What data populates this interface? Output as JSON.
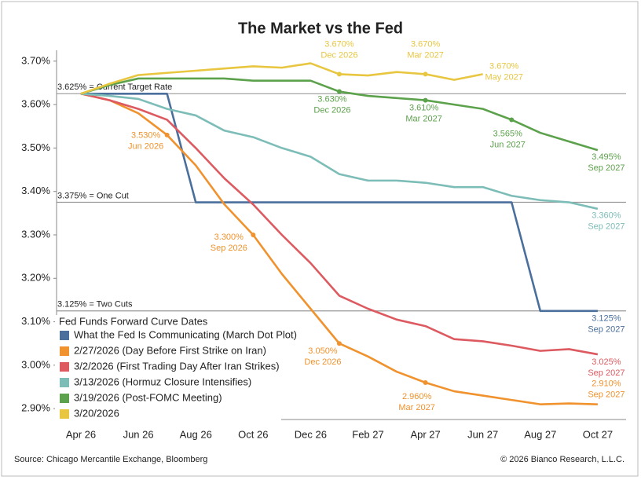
{
  "chart_data": {
    "type": "line",
    "title": "The Market vs the Fed",
    "categories": [
      "Apr 26",
      null,
      "Jun 26",
      null,
      "Aug 26",
      null,
      "Oct 26",
      null,
      "Dec 26",
      null,
      "Feb 27",
      null,
      "Apr 27",
      null,
      "Jun 27",
      null,
      "Aug 27",
      null,
      "Oct 27"
    ],
    "ylim": [
      2.875,
      3.725
    ],
    "yticks": [
      {
        "value": 2.9,
        "label": "2.90%"
      },
      {
        "value": 3.0,
        "label": "3.00%"
      },
      {
        "value": 3.1,
        "label": "3.10%"
      },
      {
        "value": 3.2,
        "label": "3.20%"
      },
      {
        "value": 3.3,
        "label": "3.30%"
      },
      {
        "value": 3.4,
        "label": "3.40%"
      },
      {
        "value": 3.5,
        "label": "3.50%"
      },
      {
        "value": 3.6,
        "label": "3.60%"
      },
      {
        "value": 3.7,
        "label": "3.70%"
      }
    ],
    "grid": false,
    "legend_title": "Fed Funds Forward Curve Dates",
    "legend_position": "lower left",
    "series": [
      {
        "name": "What the Fed Is Communicating (March Dot Plot)",
        "color": "#4a6f9c",
        "values": [
          3.625,
          3.625,
          3.625,
          3.625,
          3.375,
          3.375,
          3.375,
          3.375,
          3.375,
          3.375,
          3.375,
          3.375,
          3.375,
          3.375,
          3.375,
          3.375,
          3.125,
          3.125,
          3.125
        ]
      },
      {
        "name": "2/27/2026 (Day Before First Strike on Iran)",
        "color": "#f0922d",
        "values": [
          3.625,
          3.61,
          3.58,
          3.53,
          3.46,
          3.37,
          3.3,
          3.21,
          3.13,
          3.05,
          3.02,
          2.985,
          2.96,
          2.94,
          2.93,
          2.92,
          2.91,
          2.912,
          2.91
        ]
      },
      {
        "name": "3/2/2026 (First Trading Day After Iran Strikes)",
        "color": "#dc5a60",
        "values": [
          3.625,
          3.61,
          3.59,
          3.565,
          3.5,
          3.43,
          3.37,
          3.3,
          3.235,
          3.16,
          3.13,
          3.105,
          3.09,
          3.06,
          3.055,
          3.045,
          3.033,
          3.037,
          3.025
        ]
      },
      {
        "name": "3/13/2026 (Hormuz Closure Intensifies)",
        "color": "#7dbdb8",
        "values": [
          3.625,
          3.62,
          3.613,
          3.59,
          3.575,
          3.54,
          3.525,
          3.5,
          3.48,
          3.44,
          3.425,
          3.425,
          3.42,
          3.41,
          3.41,
          3.39,
          3.38,
          3.375,
          3.36
        ]
      },
      {
        "name": "3/19/2026 (Post-FOMC Meeting)",
        "color": "#5ca14b",
        "values": [
          3.625,
          3.645,
          3.66,
          3.66,
          3.66,
          3.66,
          3.655,
          3.655,
          3.655,
          3.63,
          3.62,
          3.615,
          3.61,
          3.6,
          3.59,
          3.565,
          3.535,
          3.515,
          3.495
        ]
      },
      {
        "name": "3/20/2026",
        "color": "#e8c640",
        "values": [
          3.625,
          3.648,
          3.668,
          3.673,
          3.678,
          3.683,
          3.688,
          3.685,
          3.695,
          3.67,
          3.667,
          3.675,
          3.67,
          3.657,
          3.67,
          null,
          null,
          null,
          null
        ]
      }
    ],
    "reference_lines": [
      {
        "value": 3.625,
        "label": "3.625% = Current Target Rate"
      },
      {
        "value": 3.375,
        "label": "3.375% = One Cut"
      },
      {
        "value": 3.125,
        "label": "3.125% = Two Cuts"
      }
    ],
    "annotations": [
      {
        "text": "3.670%",
        "date": "Dec 2026"
      },
      {
        "text": "3.670%",
        "date": "Mar 2027"
      },
      {
        "text": "3.670%",
        "date": "May 2027"
      },
      {
        "text": "3.630%",
        "date": "Dec 2026"
      },
      {
        "text": "3.610%",
        "date": "Mar 2027"
      },
      {
        "text": "3.565%",
        "date": "Jun 2027"
      },
      {
        "text": "3.495%",
        "date": "Sep 2027"
      },
      {
        "text": "3.360%",
        "date": "Sep 2027"
      },
      {
        "text": "3.530%",
        "date": "Jun 2026"
      },
      {
        "text": "3.300%",
        "date": "Sep 2026"
      },
      {
        "text": "3.050%",
        "date": "Dec 2026"
      },
      {
        "text": "2.960%",
        "date": "Mar 2027"
      },
      {
        "text": "2.910%",
        "date": "Sep 2027"
      },
      {
        "text": "3.025%",
        "date": "Sep 2027"
      },
      {
        "text": "3.125%",
        "date": "Sep 2027"
      }
    ],
    "source": "Source: Chicago Mercantile Exchange, Bloomberg",
    "copyright": "© 2026 Bianco Research, L.L.C."
  }
}
